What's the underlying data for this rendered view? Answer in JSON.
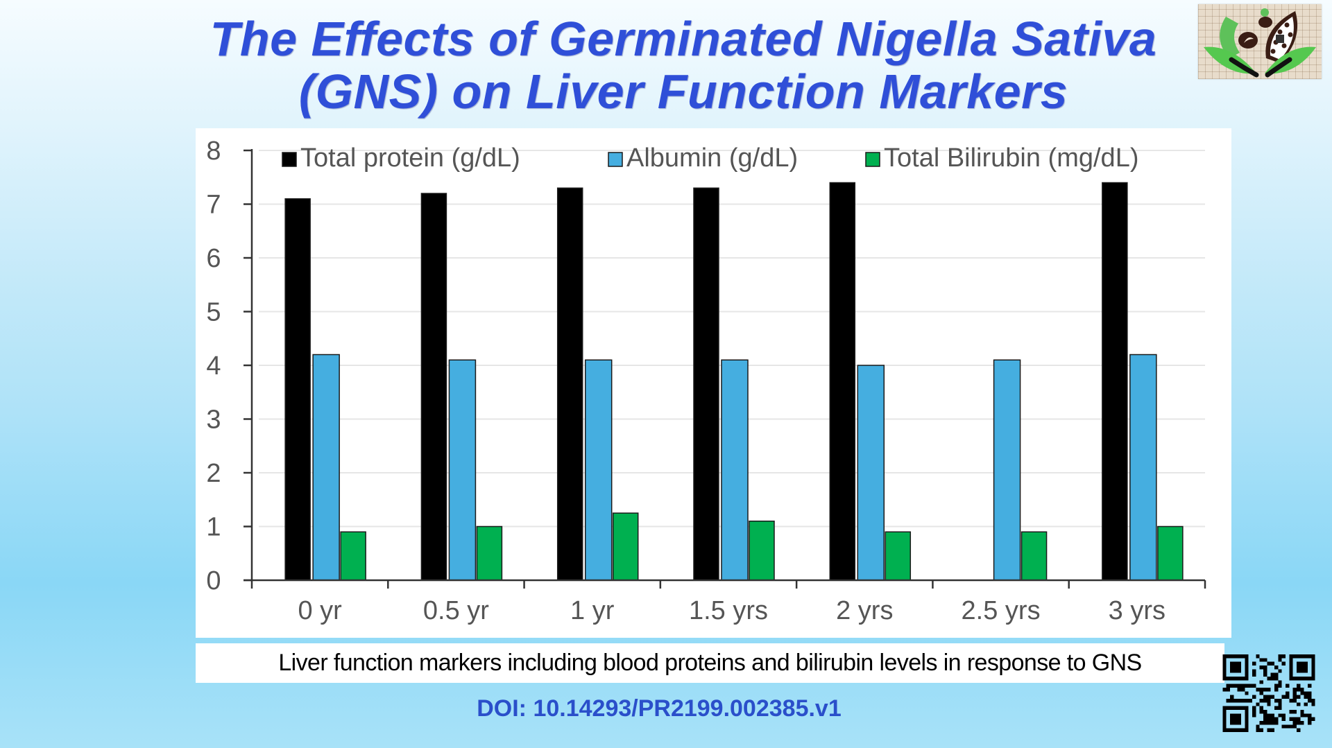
{
  "slide": {
    "title_line1": "The Effects of Germinated Nigella Sativa",
    "title_line2": "(GNS) on Liver Function Markers",
    "caption": "Liver function markers including blood proteins and bilirubin levels in response to GNS",
    "doi": "DOI: 10.14293/PR2199.002385.v1",
    "logo_icon": "seed-leaf-logo-icon",
    "qr_icon": "qr-code-icon",
    "colors": {
      "title": "#2f4fd8",
      "doi": "#2a4fca"
    }
  },
  "chart_data": {
    "type": "bar",
    "title": "",
    "xlabel": "",
    "ylabel": "",
    "categories": [
      "0 yr",
      "0.5 yr",
      "1 yr",
      "1.5 yrs",
      "2 yrs",
      "2.5 yrs",
      "3 yrs"
    ],
    "series": [
      {
        "name": "Total protein (g/dL)",
        "color": "#000000",
        "values": [
          7.1,
          7.2,
          7.3,
          7.3,
          7.4,
          null,
          7.4
        ]
      },
      {
        "name": "Albumin (g/dL)",
        "color": "#45aee0",
        "values": [
          4.2,
          4.1,
          4.1,
          4.1,
          4.0,
          4.1,
          4.2
        ]
      },
      {
        "name": "Total Bilirubin (mg/dL)",
        "color": "#00b050",
        "values": [
          0.9,
          1.0,
          1.25,
          1.1,
          0.9,
          0.9,
          1.0
        ]
      }
    ],
    "ylim": [
      0,
      8
    ],
    "yticks": [
      0,
      1,
      2,
      3,
      4,
      5,
      6,
      7,
      8
    ],
    "grid": true,
    "legend_position": "top"
  }
}
